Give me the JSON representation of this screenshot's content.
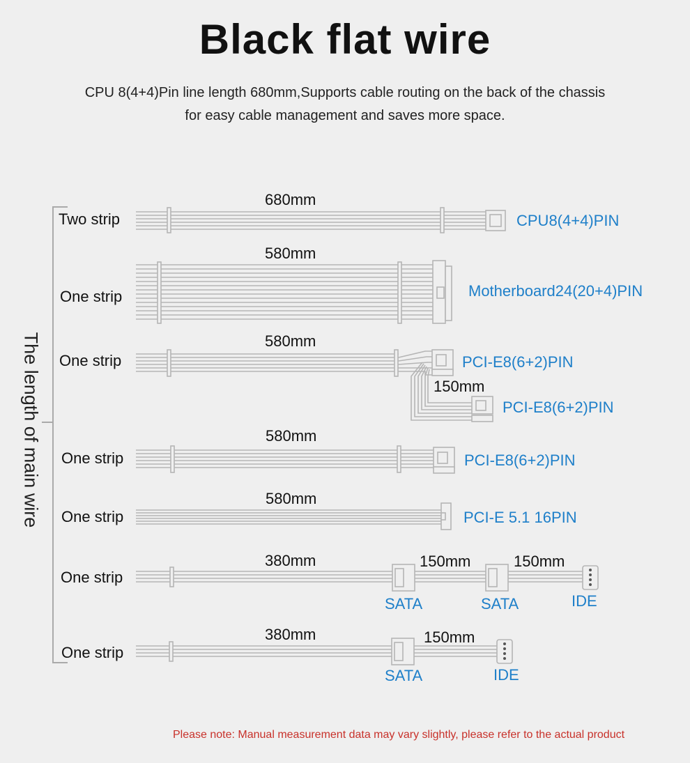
{
  "title": "Black flat wire",
  "subtitle_line1": "CPU 8(4+4)Pin line length 680mm,Supports cable routing on the back of the chassis",
  "subtitle_line2": "for easy cable management and saves more space.",
  "vertical_label": "The length of main wire",
  "rows": [
    {
      "label": "Two strip",
      "length": "680mm",
      "connector": "CPU8(4+4)PIN"
    },
    {
      "label": "One strip",
      "length": "580mm",
      "connector": "Motherboard24(20+4)PIN"
    },
    {
      "label": "One strip",
      "length": "580mm",
      "connector": "PCI-E8(6+2)PIN",
      "branch_length": "150mm",
      "branch_connector": "PCI-E8(6+2)PIN"
    },
    {
      "label": "One strip",
      "length": "580mm",
      "connector": "PCI-E8(6+2)PIN"
    },
    {
      "label": "One strip",
      "length": "580mm",
      "connector": "PCI-E 5.1 16PIN"
    },
    {
      "label": "One strip",
      "length": "380mm",
      "seg2_length": "150mm",
      "seg3_length": "150mm",
      "conn1": "SATA",
      "conn2": "SATA",
      "conn3": "IDE"
    },
    {
      "label": "One strip",
      "length": "380mm",
      "seg2_length": "150mm",
      "conn1": "SATA",
      "conn2": "IDE"
    }
  ],
  "note": "Please note: Manual measurement data may vary slightly, please refer to the actual product",
  "colors": {
    "accent": "#1e7fc9",
    "note": "#c8312a",
    "wire": "#b8b8b8"
  }
}
